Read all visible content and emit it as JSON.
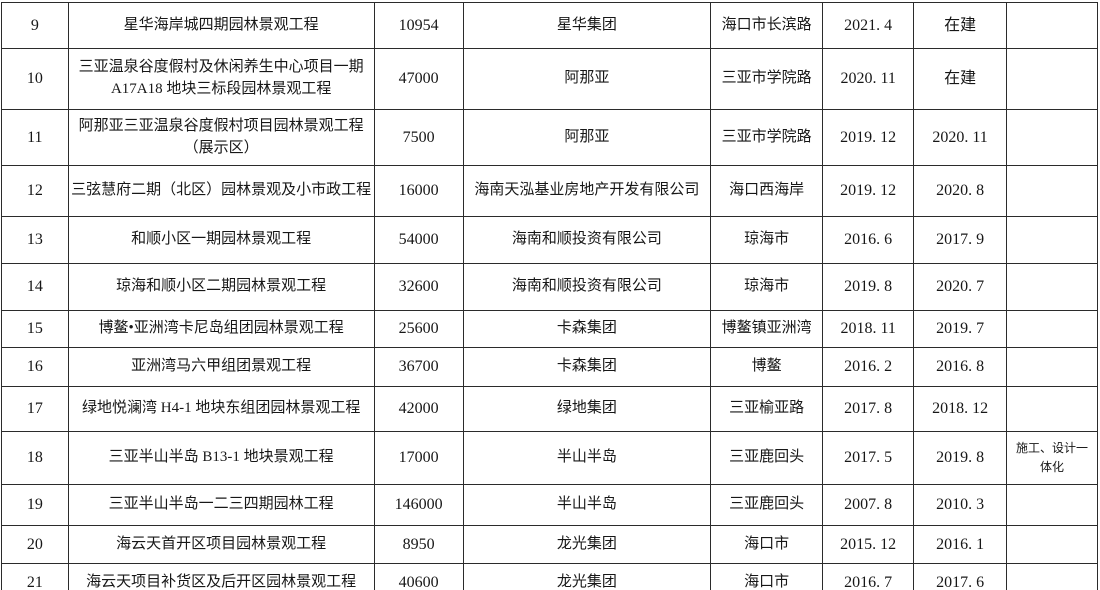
{
  "colors": {
    "grid_line": "#2b2b2b",
    "text": "#171717",
    "background": "#ffffff"
  },
  "table": {
    "rows": [
      {
        "cells": [
          "9",
          "星华海岸城四期园林景观工程",
          "10954",
          "星华集团",
          "海口市长滨路",
          "2021. 4",
          "在建",
          ""
        ]
      },
      {
        "cells": [
          "10",
          "三亚温泉谷度假村及休闲养生中心项目一期 A17A18 地块三标段园林景观工程",
          "47000",
          "阿那亚",
          "三亚市学院路",
          "2020. 11",
          "在建",
          ""
        ]
      },
      {
        "cells": [
          "11",
          "阿那亚三亚温泉谷度假村项目园林景观工程（展示区）",
          "7500",
          "阿那亚",
          "三亚市学院路",
          "2019. 12",
          "2020. 11",
          ""
        ]
      },
      {
        "cells": [
          "12",
          "三弦慧府二期（北区）园林景观及小市政工程",
          "16000",
          "海南天泓基业房地产开发有限公司",
          "海口西海岸",
          "2019. 12",
          "2020. 8",
          ""
        ]
      },
      {
        "cells": [
          "13",
          "和顺小区一期园林景观工程",
          "54000",
          "海南和顺投资有限公司",
          "琼海市",
          "2016. 6",
          "2017. 9",
          ""
        ]
      },
      {
        "cells": [
          "14",
          "琼海和顺小区二期园林景观工程",
          "32600",
          "海南和顺投资有限公司",
          "琼海市",
          "2019. 8",
          "2020. 7",
          ""
        ]
      },
      {
        "cells": [
          "15",
          "博鳌•亚洲湾卡尼岛组团园林景观工程",
          "25600",
          "卡森集团",
          "博鳌镇亚洲湾",
          "2018. 11",
          "2019. 7",
          ""
        ]
      },
      {
        "cells": [
          "16",
          "亚洲湾马六甲组团景观工程",
          "36700",
          "卡森集团",
          "博鳌",
          "2016. 2",
          "2016. 8",
          ""
        ]
      },
      {
        "cells": [
          "17",
          "绿地悦澜湾 H4-1 地块东组团园林景观工程",
          "42000",
          "绿地集团",
          "三亚榆亚路",
          "2017. 8",
          "2018. 12",
          ""
        ]
      },
      {
        "cells": [
          "18",
          "三亚半山半岛 B13-1 地块景观工程",
          "17000",
          "半山半岛",
          "三亚鹿回头",
          "2017. 5",
          "2019. 8",
          "施工、设计一体化"
        ]
      },
      {
        "cells": [
          "19",
          "三亚半山半岛一二三四期园林工程",
          "146000",
          "半山半岛",
          "三亚鹿回头",
          "2007. 8",
          "2010. 3",
          ""
        ]
      },
      {
        "cells": [
          "20",
          "海云天首开区项目园林景观工程",
          "8950",
          "龙光集团",
          "海口市",
          "2015. 12",
          "2016. 1",
          ""
        ]
      },
      {
        "cells": [
          "21",
          "海云天项目补货区及后开区园林景观工程",
          "40600",
          "龙光集团",
          "海口市",
          "2016. 7",
          "2017. 6",
          ""
        ]
      }
    ]
  }
}
